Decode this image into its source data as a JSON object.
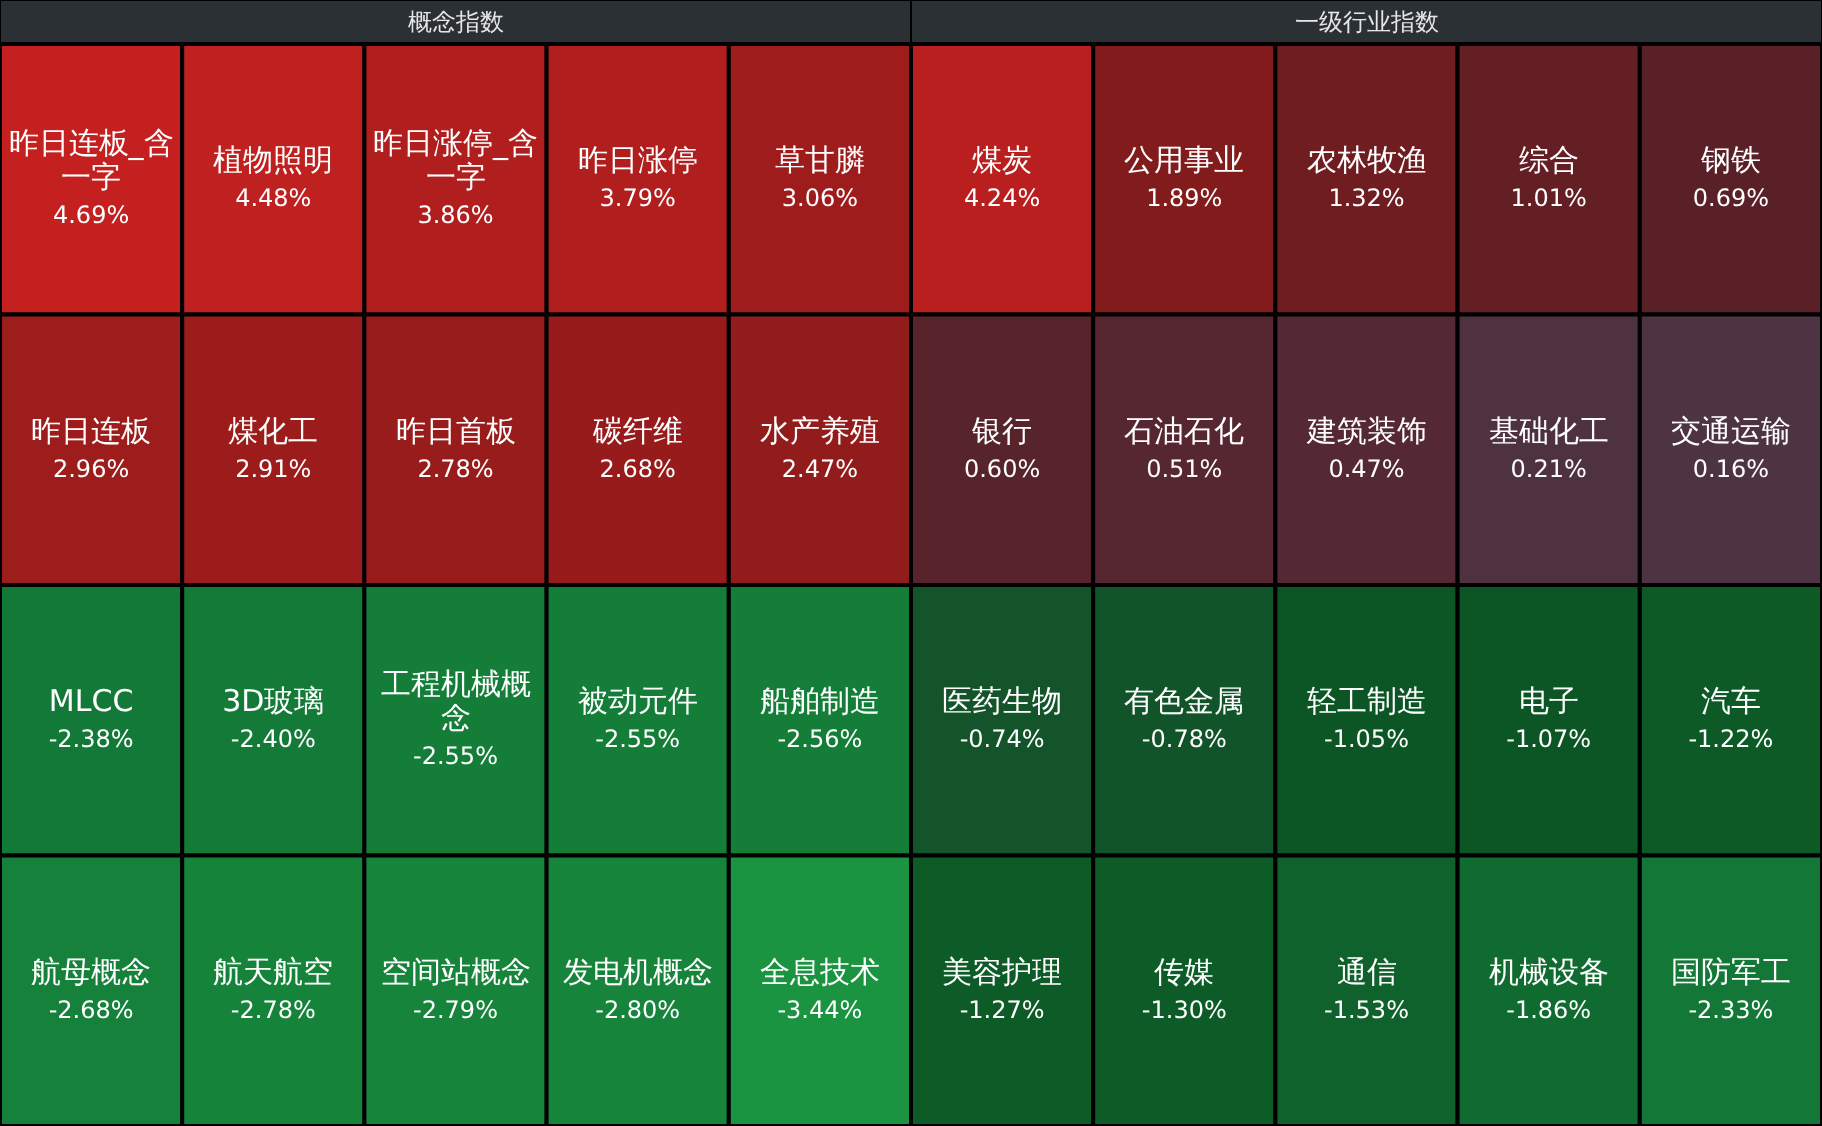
{
  "chart_data": [
    {
      "type": "other",
      "title": "概念指数",
      "categories": [
        "昨日连板_含一字",
        "植物照明",
        "昨日涨停_含一字",
        "昨日涨停",
        "草甘膦",
        "昨日连板",
        "煤化工",
        "昨日首板",
        "碳纤维",
        "水产养殖",
        "MLCC",
        "3D玻璃",
        "工程机械概念",
        "被动元件",
        "船舶制造",
        "航母概念",
        "航天航空",
        "空间站概念",
        "发电机概念",
        "全息技术"
      ],
      "values": [
        4.69,
        4.48,
        3.86,
        3.79,
        3.06,
        2.96,
        2.91,
        2.78,
        2.68,
        2.47,
        -2.38,
        -2.4,
        -2.55,
        -2.55,
        -2.56,
        -2.68,
        -2.78,
        -2.79,
        -2.8,
        -3.44
      ],
      "value_labels": [
        "4.69%",
        "4.48%",
        "3.86%",
        "3.79%",
        "3.06%",
        "2.96%",
        "2.91%",
        "2.78%",
        "2.68%",
        "2.47%",
        "-2.38%",
        "-2.40%",
        "-2.55%",
        "-2.55%",
        "-2.56%",
        "-2.68%",
        "-2.78%",
        "-2.79%",
        "-2.80%",
        "-3.44%"
      ]
    },
    {
      "type": "other",
      "title": "一级行业指数",
      "categories": [
        "煤炭",
        "公用事业",
        "农林牧渔",
        "综合",
        "钢铁",
        "银行",
        "石油石化",
        "建筑装饰",
        "基础化工",
        "交通运输",
        "医药生物",
        "有色金属",
        "轻工制造",
        "电子",
        "汽车",
        "美容护理",
        "传媒",
        "通信",
        "机械设备",
        "国防军工"
      ],
      "values": [
        4.24,
        1.89,
        1.32,
        1.01,
        0.69,
        0.6,
        0.51,
        0.47,
        0.21,
        0.16,
        -0.74,
        -0.78,
        -1.05,
        -1.07,
        -1.22,
        -1.27,
        -1.3,
        -1.53,
        -1.86,
        -2.33
      ],
      "value_labels": [
        "4.24%",
        "1.89%",
        "1.32%",
        "1.01%",
        "0.69%",
        "0.60%",
        "0.51%",
        "0.47%",
        "0.21%",
        "0.16%",
        "-0.74%",
        "-0.78%",
        "-1.05%",
        "-1.07%",
        "-1.22%",
        "-1.27%",
        "-1.30%",
        "-1.53%",
        "-1.86%",
        "-2.33%"
      ]
    }
  ]
}
